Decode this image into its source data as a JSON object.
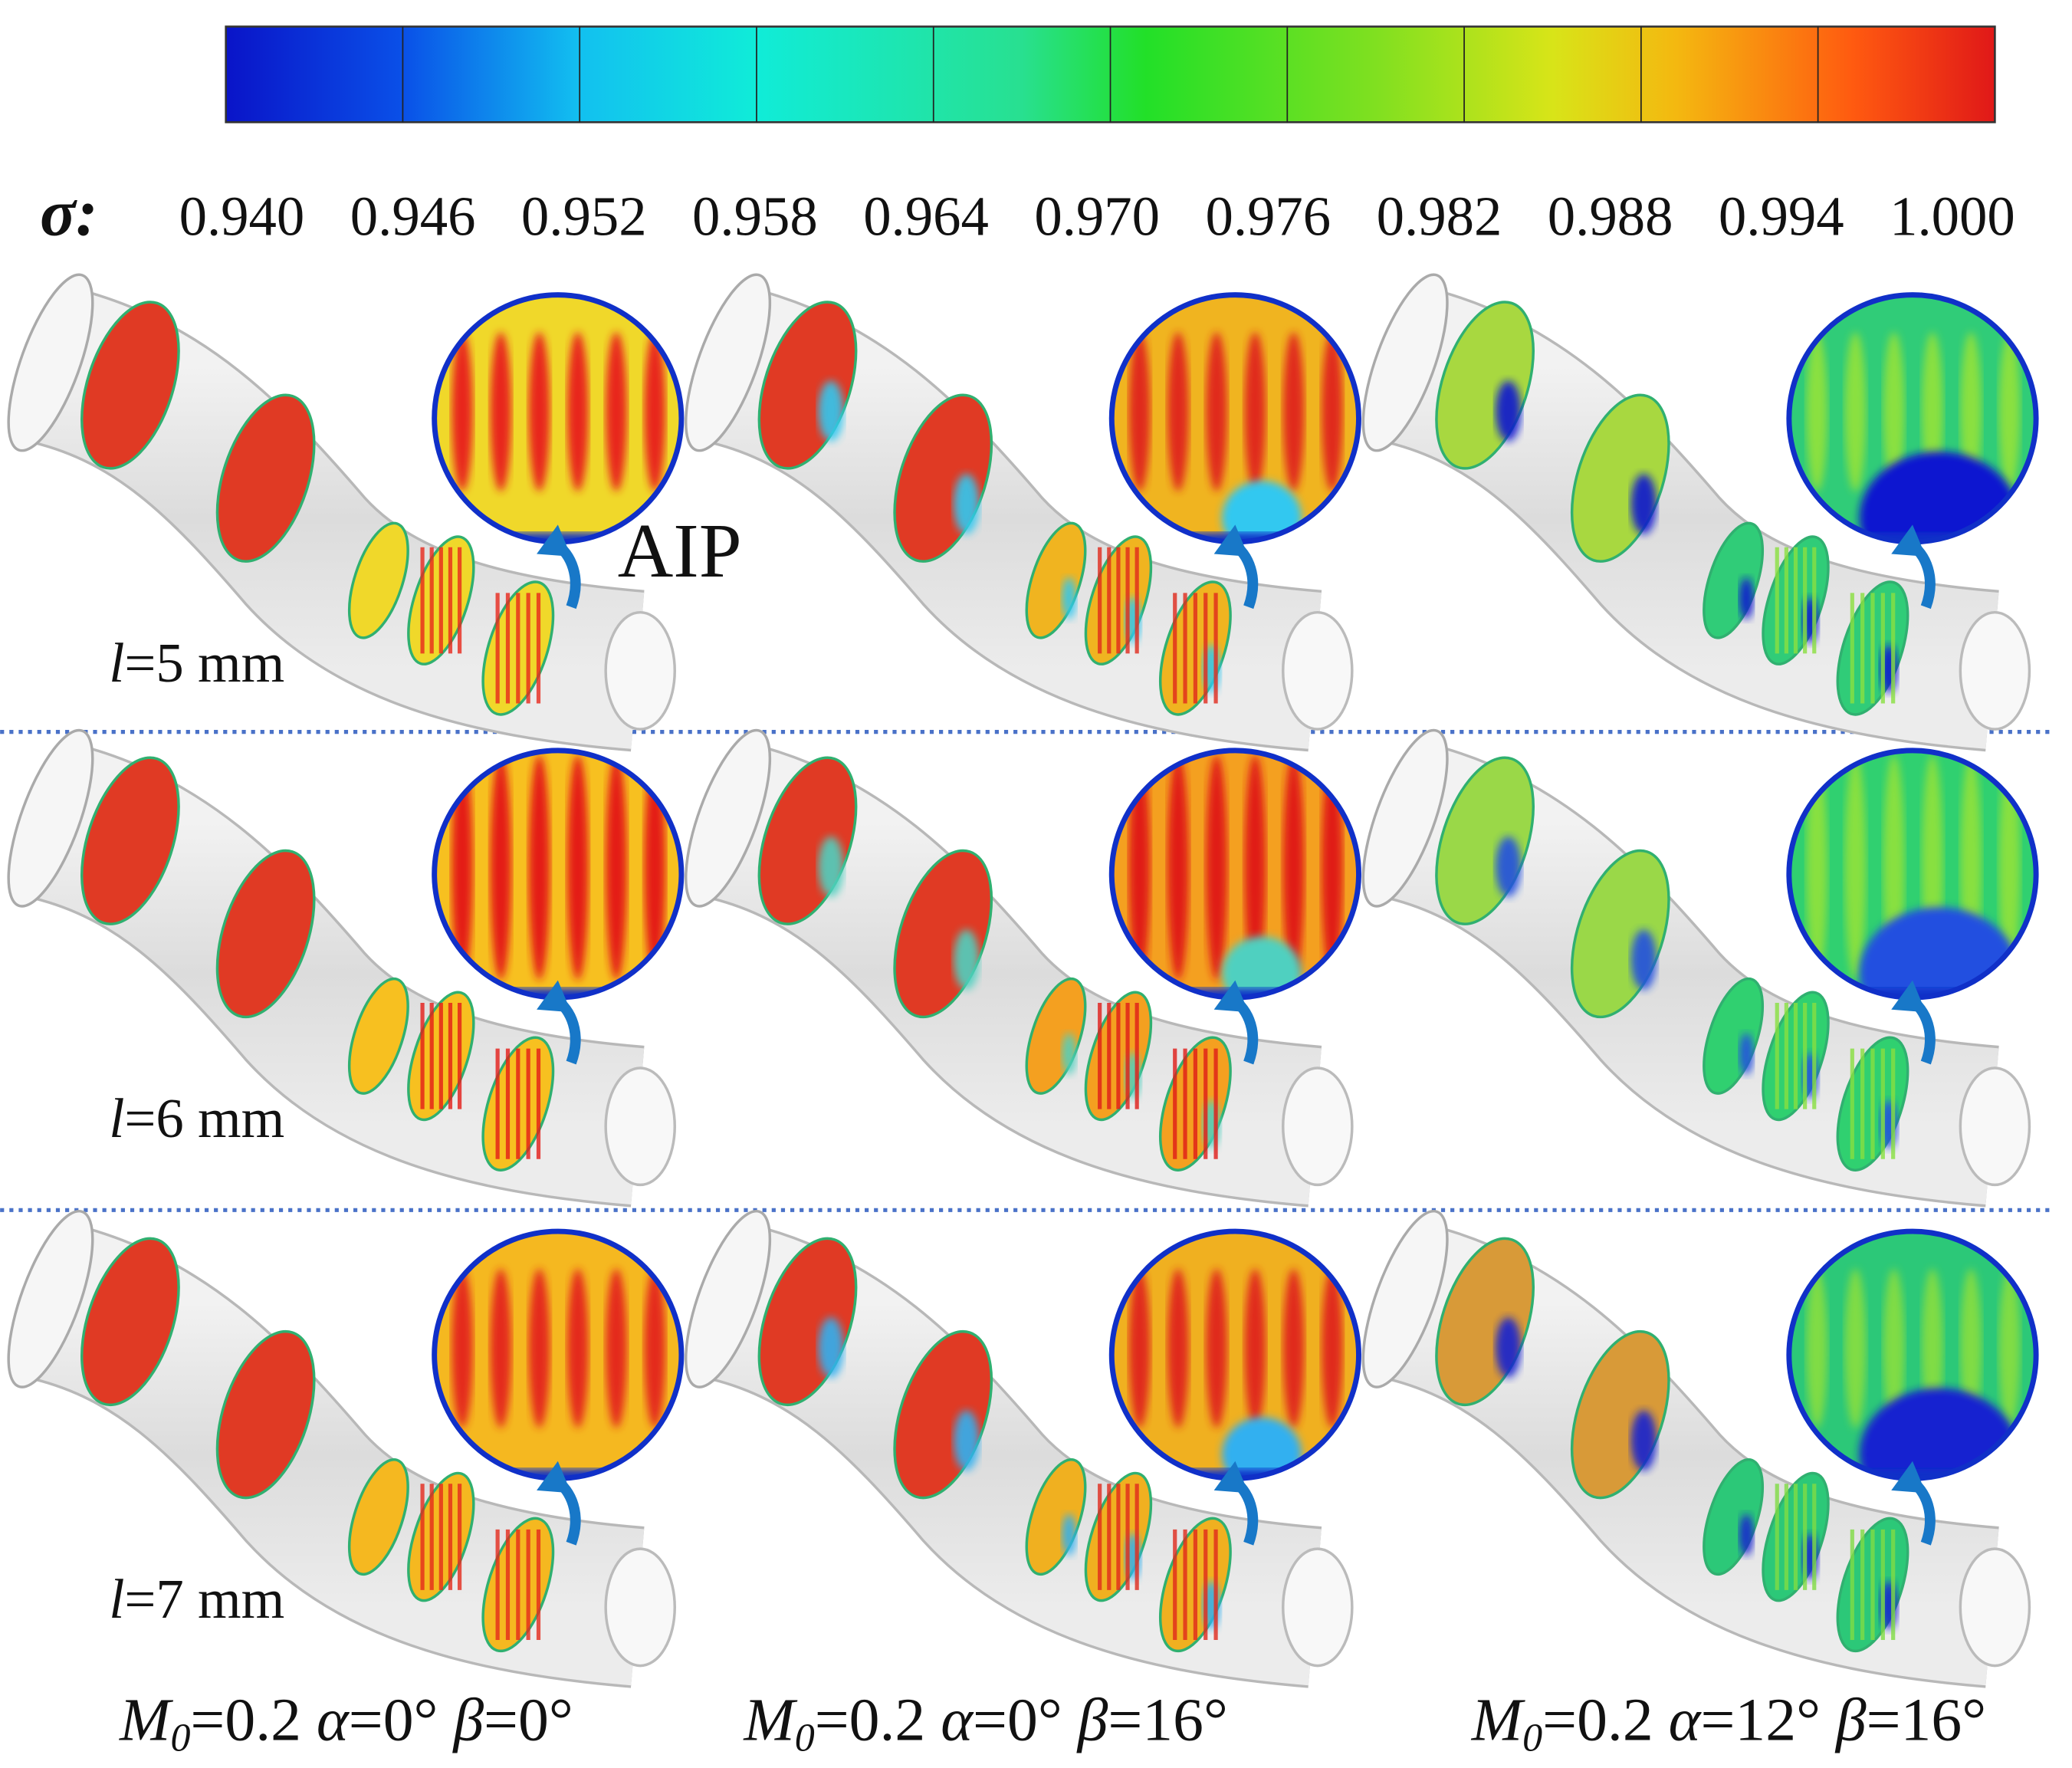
{
  "colorbar": {
    "symbol": "σ:",
    "ticks": [
      {
        "value": 0.94,
        "label": "0.940"
      },
      {
        "value": 0.946,
        "label": "0.946"
      },
      {
        "value": 0.952,
        "label": "0.952"
      },
      {
        "value": 0.958,
        "label": "0.958"
      },
      {
        "value": 0.964,
        "label": "0.964"
      },
      {
        "value": 0.97,
        "label": "0.970"
      },
      {
        "value": 0.976,
        "label": "0.976"
      },
      {
        "value": 0.982,
        "label": "0.982"
      },
      {
        "value": 0.988,
        "label": "0.988"
      },
      {
        "value": 0.994,
        "label": "0.994"
      },
      {
        "value": 1.0,
        "label": "1.000"
      }
    ]
  },
  "annotation": "AIP",
  "rows": [
    {
      "variable": "l",
      "rest": "=5 mm"
    },
    {
      "variable": "l",
      "rest": "=6 mm"
    },
    {
      "variable": "l",
      "rest": "=7 mm"
    }
  ],
  "columns": [
    {
      "mach": "M",
      "mach_sub": "0",
      "mach_value": "=0.2 ",
      "alpha": "α",
      "alpha_value": "=0°  ",
      "beta": "β",
      "beta_value": "=0°"
    },
    {
      "mach": "M",
      "mach_sub": "0",
      "mach_value": "=0.2 ",
      "alpha": "α",
      "alpha_value": "=0°  ",
      "beta": "β",
      "beta_value": "=16°"
    },
    {
      "mach": "M",
      "mach_sub": "0",
      "mach_value": "=0.2 ",
      "alpha": "α",
      "alpha_value": "=12°  ",
      "beta": "β",
      "beta_value": "=16°"
    }
  ]
}
